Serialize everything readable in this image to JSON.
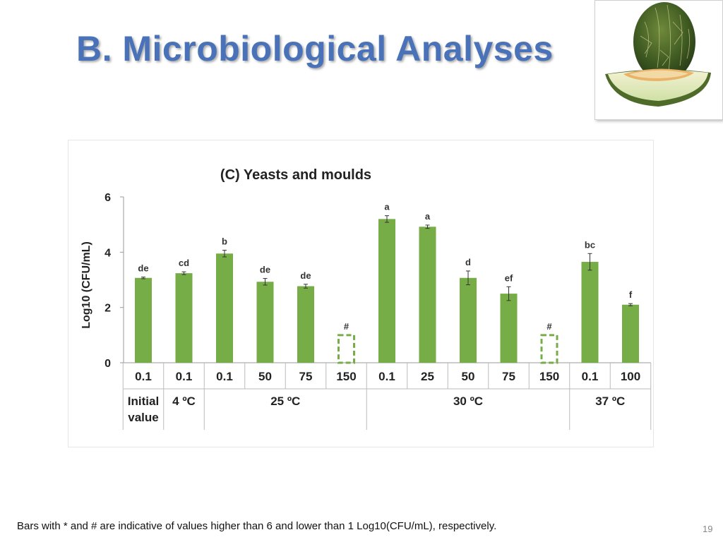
{
  "slide": {
    "title": "B. Microbiological Analyses",
    "footnote": "Bars with * and # are indicative of values  higher than 6 and lower than 1 Log10(CFU/mL), respectively.",
    "page_number": "19",
    "image_alt": "melon-photo"
  },
  "colors": {
    "title": "#4a72b8",
    "bar": "#77ad47",
    "bar_outline_dashed": "#77ad47",
    "axis": "#9a9a9a"
  },
  "chart_data": {
    "type": "bar",
    "title": "(C) Yeasts and moulds",
    "ylabel": "Log10 (CFU/mL)",
    "xlabel": "",
    "ylim": [
      0,
      6
    ],
    "yticks": [
      "0",
      "2",
      "4",
      "6"
    ],
    "grid": false,
    "categories": [
      "0.1",
      "0.1",
      "0.1",
      "50",
      "75",
      "150",
      "0.1",
      "25",
      "50",
      "75",
      "150",
      "0.1",
      "100"
    ],
    "values": [
      3.07,
      3.24,
      3.95,
      2.93,
      2.77,
      1.0,
      5.2,
      4.92,
      3.07,
      2.5,
      1.0,
      3.65,
      2.1
    ],
    "errors": [
      0.03,
      0.05,
      0.12,
      0.12,
      0.07,
      0,
      0.12,
      0.06,
      0.25,
      0.25,
      0,
      0.3,
      0.04
    ],
    "below_detection": [
      false,
      false,
      false,
      false,
      false,
      true,
      false,
      false,
      false,
      false,
      true,
      false,
      false
    ],
    "letters": [
      "de",
      "cd",
      "b",
      "de",
      "de",
      "#",
      "a",
      "a",
      "d",
      "ef",
      "#",
      "bc",
      "f"
    ],
    "groups": [
      {
        "label": [
          "Initial",
          "value"
        ],
        "start": 0,
        "end": 0
      },
      {
        "label": [
          "4 ºC"
        ],
        "start": 1,
        "end": 1
      },
      {
        "label": [
          "25 ºC"
        ],
        "start": 2,
        "end": 5
      },
      {
        "label": [
          "30 ºC"
        ],
        "start": 6,
        "end": 10
      },
      {
        "label": [
          "37 ºC"
        ],
        "start": 11,
        "end": 12
      }
    ]
  }
}
